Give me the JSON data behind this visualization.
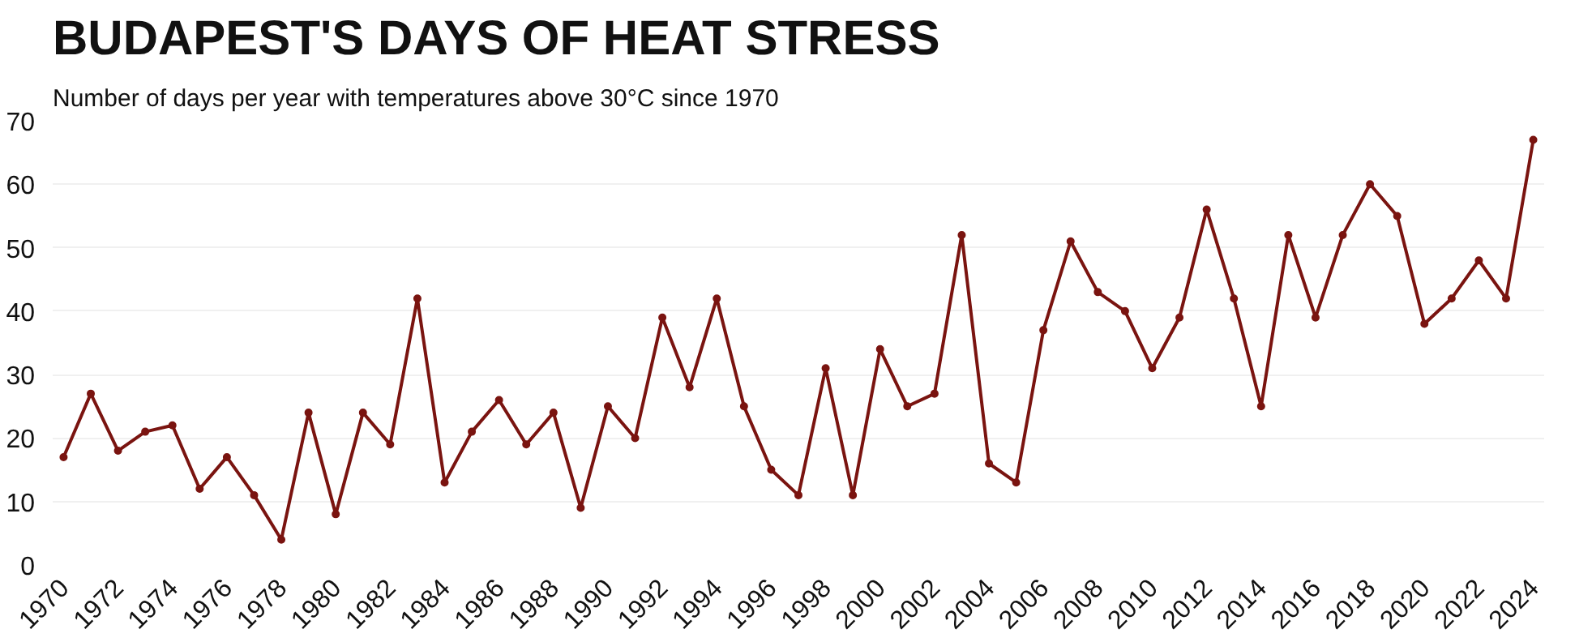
{
  "chart_data": {
    "type": "line",
    "title": "BUDAPEST'S DAYS OF HEAT STRESS",
    "subtitle": "Number of days per year with temperatures above 30°C since 1970",
    "x": [
      1970,
      1971,
      1972,
      1973,
      1974,
      1975,
      1976,
      1977,
      1978,
      1979,
      1980,
      1981,
      1982,
      1983,
      1984,
      1985,
      1986,
      1987,
      1988,
      1989,
      1990,
      1991,
      1992,
      1993,
      1994,
      1995,
      1996,
      1997,
      1998,
      1999,
      2000,
      2001,
      2002,
      2003,
      2004,
      2005,
      2006,
      2007,
      2008,
      2009,
      2010,
      2011,
      2012,
      2013,
      2014,
      2015,
      2016,
      2017,
      2018,
      2019,
      2020,
      2021,
      2022,
      2023,
      2024
    ],
    "series": [
      {
        "color": "#7a1410",
        "values": [
          17,
          27,
          18,
          21,
          22,
          12,
          17,
          11,
          4,
          24,
          8,
          24,
          19,
          42,
          13,
          21,
          26,
          19,
          24,
          9,
          25,
          20,
          39,
          28,
          42,
          25,
          15,
          11,
          31,
          11,
          34,
          25,
          27,
          52,
          16,
          13,
          37,
          51,
          43,
          40,
          31,
          39,
          56,
          42,
          25,
          52,
          39,
          52,
          60,
          55,
          38,
          42,
          48,
          42,
          67
        ]
      }
    ],
    "xlim": [
      1969.6,
      2024.4
    ],
    "ylim": [
      0,
      70
    ],
    "xticks": [
      1970,
      1972,
      1974,
      1976,
      1978,
      1980,
      1982,
      1984,
      1986,
      1988,
      1990,
      1992,
      1994,
      1996,
      1998,
      2000,
      2002,
      2004,
      2006,
      2008,
      2010,
      2012,
      2014,
      2016,
      2018,
      2020,
      2022,
      2024
    ],
    "yticks": [
      0,
      10,
      20,
      30,
      40,
      50,
      60,
      70
    ],
    "grid": "y",
    "marker": "circle",
    "line_style": "solid"
  }
}
